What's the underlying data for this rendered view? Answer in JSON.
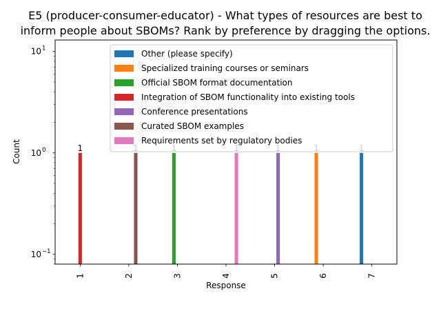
{
  "chart_data": {
    "type": "bar",
    "title_line1": "E5 (producer-consumer-educator) - What types of resources are best to",
    "title_line2": "inform people about SBOMs? Rank by preference by dragging the options.",
    "xlabel": "Response",
    "ylabel": "Count",
    "categories": [
      "1",
      "2",
      "3",
      "4",
      "5",
      "6",
      "7"
    ],
    "yscale": "log",
    "ylim": [
      0.08,
      13
    ],
    "yticks": [
      {
        "value": 0.1,
        "base": "10",
        "exp": "−1"
      },
      {
        "value": 1,
        "base": "10",
        "exp": "0"
      },
      {
        "value": 10,
        "base": "10",
        "exp": "1"
      }
    ],
    "legend_position": "top-right",
    "series": [
      {
        "name": "Other (please specify)",
        "color": "#1f77b4",
        "values": [
          null,
          null,
          null,
          null,
          null,
          null,
          1
        ]
      },
      {
        "name": "Specialized training courses or seminars",
        "color": "#ff7f0e",
        "values": [
          null,
          null,
          null,
          null,
          null,
          1,
          null
        ]
      },
      {
        "name": "Official SBOM format documentation",
        "color": "#2ca02c",
        "values": [
          null,
          null,
          1,
          null,
          null,
          null,
          null
        ]
      },
      {
        "name": "Integration of SBOM functionality into existing tools",
        "color": "#d62728",
        "values": [
          1,
          null,
          null,
          null,
          null,
          null,
          null
        ]
      },
      {
        "name": "Conference presentations",
        "color": "#9467bd",
        "values": [
          null,
          null,
          null,
          null,
          1,
          null,
          null
        ]
      },
      {
        "name": "Curated SBOM examples",
        "color": "#8c564b",
        "values": [
          null,
          1,
          null,
          null,
          null,
          null,
          null
        ]
      },
      {
        "name": "Requirements set by regulatory bodies",
        "color": "#e377c2",
        "values": [
          null,
          null,
          null,
          1,
          null,
          null,
          null
        ]
      }
    ],
    "data_labels": [
      "1",
      "1",
      "1",
      "1",
      "1",
      "1",
      "1"
    ]
  }
}
